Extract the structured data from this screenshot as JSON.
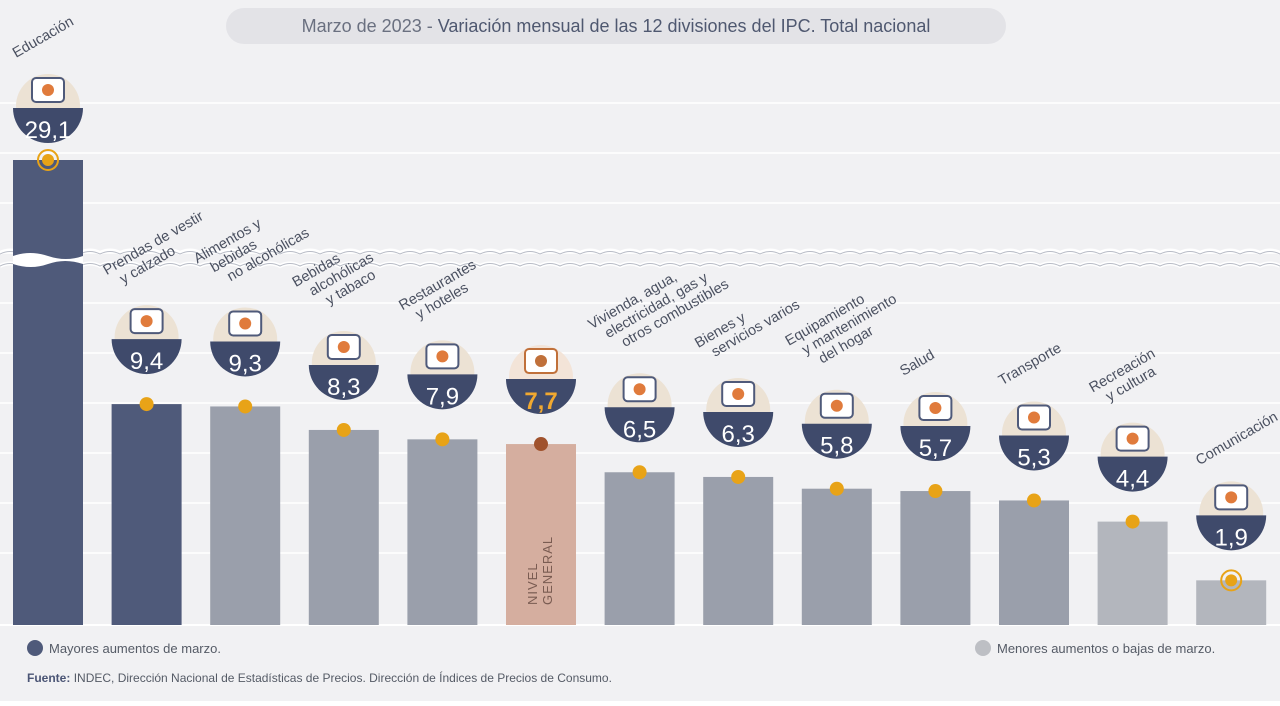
{
  "header": {
    "title_date": "Marzo de 2023",
    "title_separator": "-",
    "title_main": "Variación mensual de las 12 divisiones del IPC. Total nacional"
  },
  "legend": {
    "high": {
      "label": "Mayores aumentos de marzo.",
      "color": "#4f5a7a"
    },
    "low": {
      "label": "Menores aumentos o bajas de marzo.",
      "color": "#bdbfc4"
    }
  },
  "source": {
    "label": "Fuente:",
    "text": "INDEC, Dirección Nacional de Estadísticas de Precios. Dirección de Índices de Precios de Consumo."
  },
  "chart_data": {
    "type": "bar",
    "axis_break": true,
    "grid": true,
    "legend_position": "bottom",
    "categories": [
      {
        "label": "Educación",
        "value": 29.1,
        "display": "29,1",
        "group": "high",
        "icon": "notebook-icon"
      },
      {
        "label": "Prendas de vestir y calzado",
        "value": 9.4,
        "display": "9,4",
        "group": "high",
        "icon": "tshirt-icon"
      },
      {
        "label": "Alimentos y bebidas no alcohólicas",
        "value": 9.3,
        "display": "9,3",
        "group": "mid",
        "icon": "food-icon"
      },
      {
        "label": "Bebidas alcohólicas y tabaco",
        "value": 8.3,
        "display": "8,3",
        "group": "mid",
        "icon": "bottle-icon"
      },
      {
        "label": "Restaurantes y hoteles",
        "value": 7.9,
        "display": "7,9",
        "group": "mid",
        "icon": "plate-icon"
      },
      {
        "label": "NIVEL GENERAL",
        "value": 7.7,
        "display": "7,7",
        "group": "general",
        "icon": "basket-icon"
      },
      {
        "label": "Vivienda, agua, electricidad, gas y otros combustibles",
        "value": 6.5,
        "display": "6,5",
        "group": "mid",
        "icon": "lightbulb-icon"
      },
      {
        "label": "Bienes y servicios varios",
        "value": 6.3,
        "display": "6,3",
        "group": "mid",
        "icon": "comb-scissors-icon"
      },
      {
        "label": "Equipamiento y mantenimiento del hogar",
        "value": 5.8,
        "display": "5,8",
        "group": "mid",
        "icon": "washing-machine-icon"
      },
      {
        "label": "Salud",
        "value": 5.7,
        "display": "5,7",
        "group": "mid",
        "icon": "medical-cross-icon"
      },
      {
        "label": "Transporte",
        "value": 5.3,
        "display": "5,3",
        "group": "mid",
        "icon": "car-sube-icon"
      },
      {
        "label": "Recreación y cultura",
        "value": 4.4,
        "display": "4,4",
        "group": "low",
        "icon": "umbrella-sun-icon"
      },
      {
        "label": "Comunicación",
        "value": 1.9,
        "display": "1,9",
        "group": "low",
        "icon": "phone-icon"
      }
    ],
    "label_lines": [
      [
        "Educación"
      ],
      [
        "Prendas de vestir",
        "y calzado"
      ],
      [
        "Alimentos y",
        "bebidas",
        "no alcohólicas"
      ],
      [
        "Bebidas",
        "alcohólicas",
        "y tabaco"
      ],
      [
        "Restaurantes",
        "y hoteles"
      ],
      [
        "NIVEL",
        "GENERAL"
      ],
      [
        "Vivienda, agua,",
        "electricidad, gas y",
        "otros combustibles"
      ],
      [
        "Bienes y",
        "servicios varios"
      ],
      [
        "Equipamiento",
        "y mantenimiento",
        "del hogar"
      ],
      [
        "Salud"
      ],
      [
        "Transporte"
      ],
      [
        "Recreación",
        "y cultura"
      ],
      [
        "Comunicación"
      ]
    ],
    "group_colors": {
      "high": "#4f5a7a",
      "mid": "#9a9fab",
      "general": "#d5ae9f",
      "low": "#b3b6bd"
    },
    "accent_color": "#e8a317",
    "general_dot_color": "#a0522d",
    "value_text_color": "#ffffff",
    "general_value_color": "#f0a830",
    "icon_sign": "SUBE"
  }
}
